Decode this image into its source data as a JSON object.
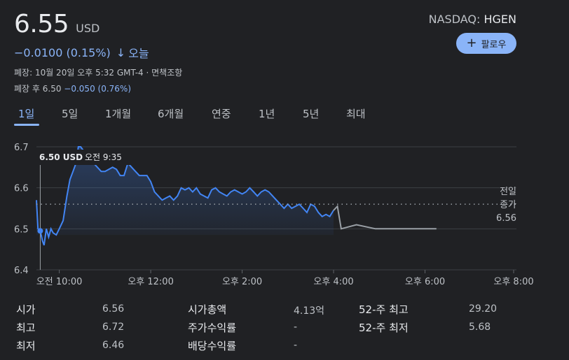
{
  "quote": {
    "price": "6.55",
    "currency": "USD",
    "change": "−0.0100 (0.15%)",
    "change_arrow": "↓",
    "change_period": "오늘",
    "close_info": "폐장: 10월 20일 오후 5:32 GMT-4 · 면책조항",
    "after_hours_label": "폐장 후 6.50",
    "after_hours_change": "−0.050 (0.76%)",
    "exchange": "NASDAQ:",
    "symbol": "HGEN",
    "follow_label": "팔로우",
    "colors": {
      "accent": "#8ab4f8",
      "line_regular": "#4285f4",
      "line_after": "#9aa0a6",
      "background": "#202124"
    }
  },
  "tabs": [
    "1일",
    "5일",
    "1개월",
    "6개월",
    "연중",
    "1년",
    "5년",
    "최대"
  ],
  "active_tab": "1일",
  "chart_data": {
    "type": "line",
    "yticks": [
      "6.7",
      "6.6",
      "6.5",
      "6.4"
    ],
    "xticks": [
      "오전 10:00",
      "오후 12:00",
      "오후 2:00",
      "오후 4:00",
      "오후 6:00",
      "오후 8:00"
    ],
    "ylim": [
      6.4,
      6.7
    ],
    "xlim": [
      "9:30",
      "20:00"
    ],
    "grid": true,
    "prev_close": {
      "label_line1": "전일",
      "label_line2": "종가",
      "value": "6.56",
      "y": 6.56
    },
    "tooltip": {
      "price": "6.50 USD",
      "time": "오전 9:35",
      "x": "9:35",
      "y": 6.495
    },
    "series": [
      {
        "segment": "regular",
        "points": [
          [
            "9:30",
            6.57
          ],
          [
            "9:32",
            6.5
          ],
          [
            "9:35",
            6.495
          ],
          [
            "9:38",
            6.47
          ],
          [
            "9:40",
            6.46
          ],
          [
            "9:43",
            6.5
          ],
          [
            "9:46",
            6.48
          ],
          [
            "9:49",
            6.5
          ],
          [
            "9:52",
            6.49
          ],
          [
            "9:56",
            6.485
          ],
          [
            "10:00",
            6.5
          ],
          [
            "10:05",
            6.52
          ],
          [
            "10:10",
            6.58
          ],
          [
            "10:14",
            6.62
          ],
          [
            "10:18",
            6.64
          ],
          [
            "10:22",
            6.66
          ],
          [
            "10:25",
            6.7
          ],
          [
            "10:28",
            6.7
          ],
          [
            "10:32",
            6.69
          ],
          [
            "10:36",
            6.68
          ],
          [
            "10:40",
            6.67
          ],
          [
            "10:45",
            6.66
          ],
          [
            "10:50",
            6.65
          ],
          [
            "10:55",
            6.64
          ],
          [
            "11:00",
            6.64
          ],
          [
            "11:05",
            6.645
          ],
          [
            "11:10",
            6.65
          ],
          [
            "11:15",
            6.645
          ],
          [
            "11:20",
            6.63
          ],
          [
            "11:25",
            6.63
          ],
          [
            "11:30",
            6.66
          ],
          [
            "11:35",
            6.65
          ],
          [
            "11:40",
            6.64
          ],
          [
            "11:45",
            6.63
          ],
          [
            "11:50",
            6.63
          ],
          [
            "11:55",
            6.63
          ],
          [
            "12:00",
            6.615
          ],
          [
            "12:05",
            6.59
          ],
          [
            "12:10",
            6.58
          ],
          [
            "12:15",
            6.57
          ],
          [
            "12:20",
            6.575
          ],
          [
            "12:25",
            6.58
          ],
          [
            "12:30",
            6.57
          ],
          [
            "12:35",
            6.58
          ],
          [
            "12:40",
            6.6
          ],
          [
            "12:45",
            6.595
          ],
          [
            "12:50",
            6.6
          ],
          [
            "12:55",
            6.59
          ],
          [
            "13:00",
            6.6
          ],
          [
            "13:05",
            6.585
          ],
          [
            "13:10",
            6.58
          ],
          [
            "13:15",
            6.575
          ],
          [
            "13:20",
            6.595
          ],
          [
            "13:25",
            6.6
          ],
          [
            "13:30",
            6.59
          ],
          [
            "13:35",
            6.585
          ],
          [
            "13:40",
            6.58
          ],
          [
            "13:45",
            6.59
          ],
          [
            "13:50",
            6.595
          ],
          [
            "13:55",
            6.59
          ],
          [
            "14:00",
            6.585
          ],
          [
            "14:05",
            6.59
          ],
          [
            "14:10",
            6.6
          ],
          [
            "14:15",
            6.59
          ],
          [
            "14:20",
            6.58
          ],
          [
            "14:25",
            6.59
          ],
          [
            "14:30",
            6.595
          ],
          [
            "14:35",
            6.59
          ],
          [
            "14:40",
            6.58
          ],
          [
            "14:45",
            6.57
          ],
          [
            "14:50",
            6.56
          ],
          [
            "14:55",
            6.55
          ],
          [
            "15:00",
            6.56
          ],
          [
            "15:05",
            6.55
          ],
          [
            "15:10",
            6.555
          ],
          [
            "15:15",
            6.56
          ],
          [
            "15:20",
            6.55
          ],
          [
            "15:25",
            6.54
          ],
          [
            "15:30",
            6.56
          ],
          [
            "15:35",
            6.555
          ],
          [
            "15:40",
            6.54
          ],
          [
            "15:45",
            6.53
          ],
          [
            "15:50",
            6.535
          ],
          [
            "15:55",
            6.53
          ],
          [
            "16:00",
            6.545
          ]
        ]
      },
      {
        "segment": "after_hours",
        "points": [
          [
            "16:00",
            6.545
          ],
          [
            "16:05",
            6.555
          ],
          [
            "16:10",
            6.5
          ],
          [
            "16:30",
            6.51
          ],
          [
            "16:55",
            6.5
          ],
          [
            "17:30",
            6.5
          ],
          [
            "18:00",
            6.5
          ],
          [
            "18:15",
            6.5
          ]
        ]
      }
    ]
  },
  "stats": {
    "col1": [
      {
        "label": "시가",
        "value": "6.56"
      },
      {
        "label": "최고",
        "value": "6.72"
      },
      {
        "label": "최저",
        "value": "6.46"
      }
    ],
    "col2": [
      {
        "label": "시가총액",
        "value": "4.13억"
      },
      {
        "label": "주가수익률",
        "value": "-"
      },
      {
        "label": "배당수익률",
        "value": "-"
      }
    ],
    "col3": [
      {
        "label": "52-주 최고",
        "value": "29.20"
      },
      {
        "label": "52-주 최저",
        "value": "5.68"
      }
    ]
  }
}
